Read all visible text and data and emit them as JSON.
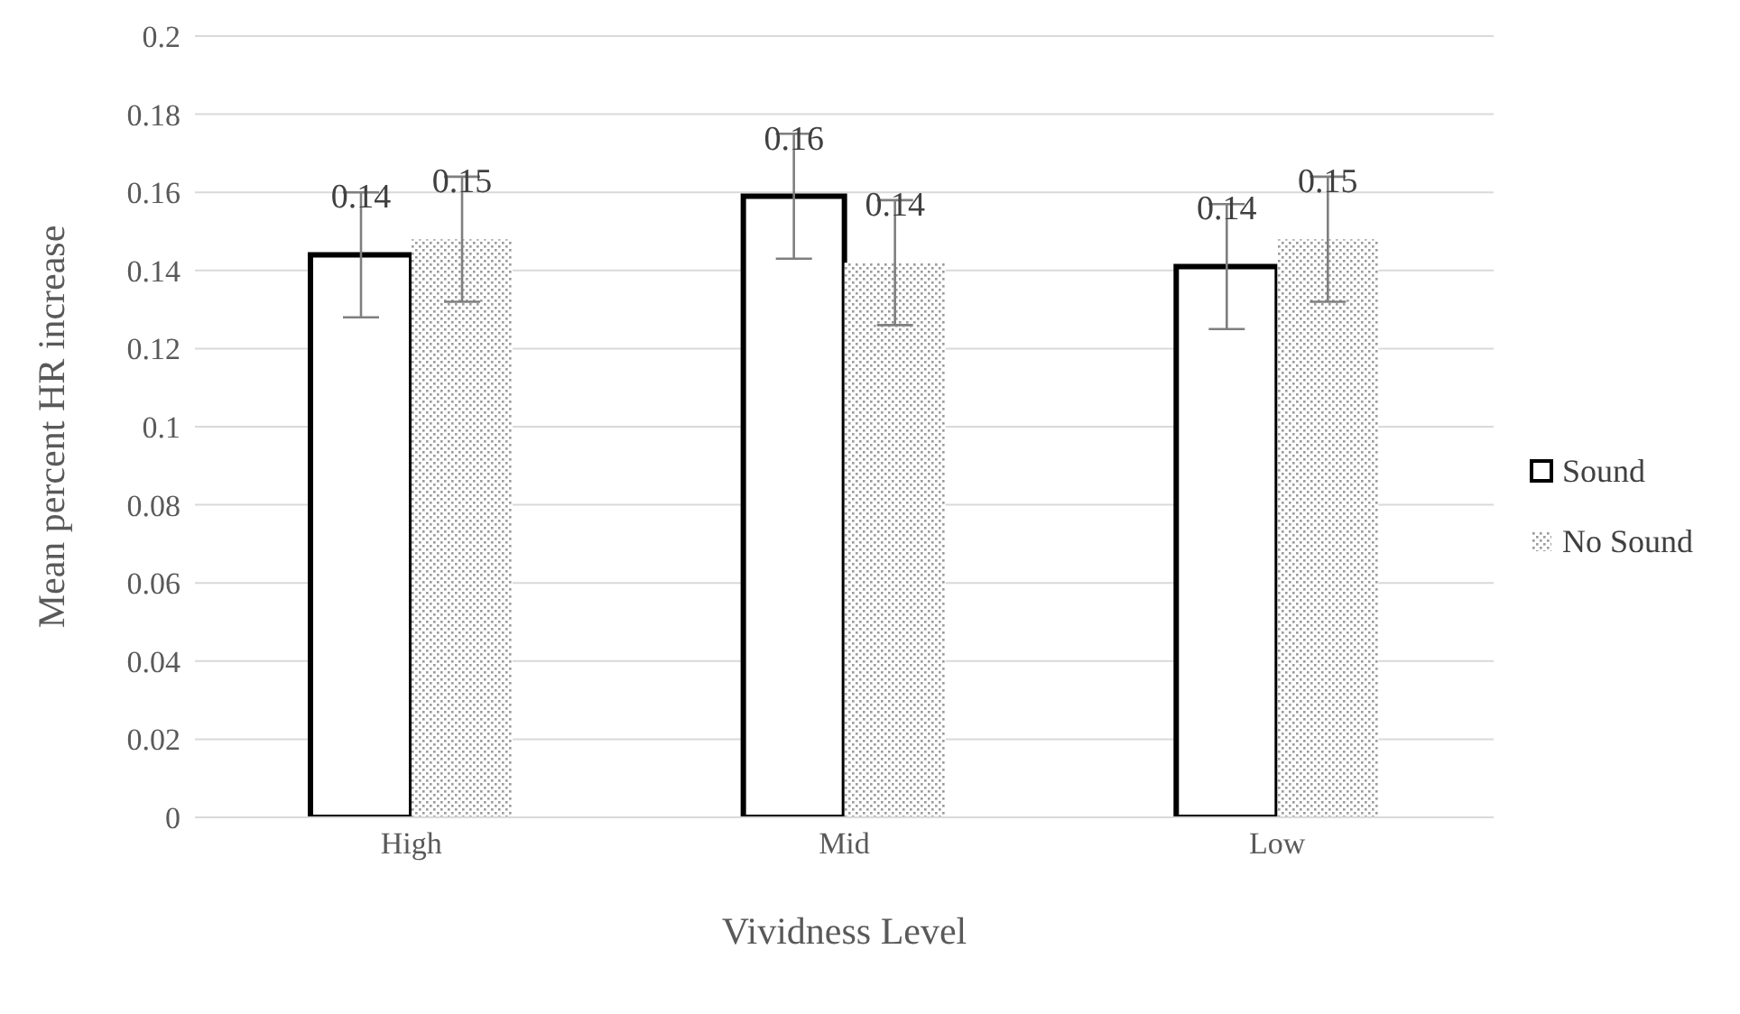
{
  "chart_data": {
    "type": "bar",
    "xlabel": "Vividness Level",
    "ylabel": "Mean percent HR increase",
    "categories": [
      "High",
      "Mid",
      "Low"
    ],
    "series": [
      {
        "name": "Sound",
        "color": "#ffffff",
        "values": [
          0.144,
          0.159,
          0.141
        ],
        "errors": [
          0.016,
          0.016,
          0.016
        ],
        "value_labels": [
          "0.14",
          "0.16",
          "0.14"
        ]
      },
      {
        "name": "No Sound",
        "color": "#9a9a9a",
        "values": [
          0.148,
          0.142,
          0.148
        ],
        "errors": [
          0.016,
          0.016,
          0.016
        ],
        "value_labels": [
          "0.15",
          "0.14",
          "0.15"
        ]
      }
    ],
    "ylim": [
      0,
      0.2
    ],
    "yticks": [
      0,
      0.02,
      0.04,
      0.06,
      0.08,
      0.1,
      0.12,
      0.14,
      0.16,
      0.18,
      0.2
    ],
    "grid": "y",
    "legend": "right"
  }
}
